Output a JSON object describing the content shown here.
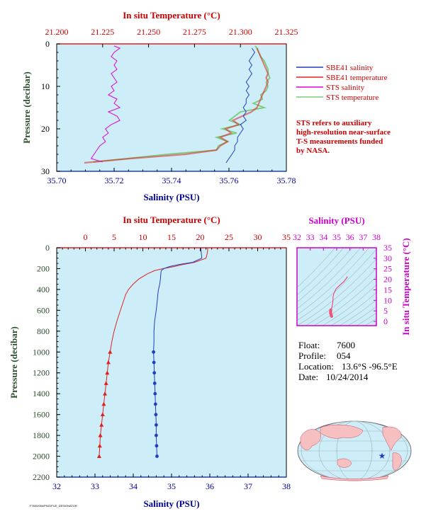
{
  "colors": {
    "salinity": "#1f3fc0",
    "temperature": "#e02020",
    "sts_salinity": "#dd00dd",
    "sts_temperature": "#7ccc7c",
    "temp_axis": "#cc0000",
    "sal_axis": "#00009a",
    "pressure_axis": "#2e4d2e",
    "ts_axis": "#cc00cc",
    "plot_bg": "#cdeef8",
    "map_land": "#f6c0c0",
    "map_ocean": "#cdeef8"
  },
  "legend": {
    "items": [
      {
        "label": "SBE41 salinity",
        "color": "#1f3fc0"
      },
      {
        "label": "SBE41 temperature",
        "color": "#e02020"
      },
      {
        "label": "STS salinity",
        "color": "#dd00dd"
      },
      {
        "label": "STS temperature",
        "color": "#7ccc7c"
      }
    ],
    "note": [
      "STS refers to auxiliary",
      "high-resolution near-surface",
      "T-S measurements funded",
      "by NASA."
    ]
  },
  "info": {
    "float_label": "Float:",
    "float": "7600",
    "profile_label": "Profile:",
    "profile": "054",
    "location_label": "Location:",
    "location": "13.6°S  -96.5°E",
    "date_label": "Date:",
    "date": "10/24/2014"
  },
  "footer": "F7600/054/PNG/FILE_DESIGNATOR",
  "chart_data": [
    {
      "type": "line",
      "name": "near-surface",
      "top_axis": {
        "label": "In situ Temperature (°C)",
        "range": [
          21.2,
          21.325
        ],
        "ticks": [
          "21.200",
          "21.225",
          "21.250",
          "21.275",
          "21.300",
          "21.325"
        ]
      },
      "bottom_axis": {
        "label": "Salinity (PSU)",
        "range": [
          35.7,
          35.78
        ],
        "ticks": [
          "35.70",
          "35.72",
          "35.74",
          "35.76",
          "35.78"
        ]
      },
      "left_axis": {
        "label": "Pressure (decibar)",
        "range": [
          0,
          30
        ],
        "inverted": true,
        "ticks": [
          "0",
          "10",
          "20",
          "30"
        ]
      },
      "series": [
        {
          "name": "STS salinity",
          "axis": "salinity",
          "p": [
            0.5,
            1,
            2,
            3,
            4,
            5,
            6,
            7,
            8,
            9,
            10,
            11,
            12,
            13,
            14,
            15,
            16,
            17,
            18,
            19,
            20,
            21,
            22,
            23,
            24,
            25,
            26,
            27,
            27.8
          ],
          "v": [
            35.72,
            35.722,
            35.72,
            35.719,
            35.721,
            35.72,
            35.721,
            35.719,
            35.72,
            35.721,
            35.719,
            35.72,
            35.718,
            35.721,
            35.72,
            35.722,
            35.718,
            35.721,
            35.722,
            35.719,
            35.717,
            35.718,
            35.716,
            35.717,
            35.715,
            35.714,
            35.713,
            35.712,
            35.716
          ]
        },
        {
          "name": "SBE41 salinity",
          "axis": "salinity",
          "p": [
            1,
            2,
            3,
            4,
            5,
            6,
            7,
            8,
            9,
            10,
            11,
            12,
            13,
            14,
            15,
            16,
            17,
            18,
            19,
            20,
            21,
            22,
            23,
            24,
            25,
            26,
            27,
            28
          ],
          "v": [
            35.768,
            35.769,
            35.768,
            35.767,
            35.768,
            35.767,
            35.768,
            35.767,
            35.766,
            35.767,
            35.766,
            35.767,
            35.766,
            35.766,
            35.765,
            35.766,
            35.765,
            35.766,
            35.764,
            35.765,
            35.764,
            35.763,
            35.763,
            35.762,
            35.762,
            35.761,
            35.76,
            35.759
          ]
        },
        {
          "name": "STS temperature",
          "axis": "temperature",
          "p": [
            0.5,
            1,
            2,
            3,
            4,
            5,
            6,
            7,
            8,
            9,
            10,
            11,
            12,
            13,
            14,
            15,
            16,
            17,
            18,
            19,
            20,
            21,
            22,
            23,
            24,
            25,
            26,
            27,
            27.8
          ],
          "v": [
            21.308,
            21.309,
            21.31,
            21.311,
            21.313,
            21.314,
            21.315,
            21.315,
            21.316,
            21.314,
            21.315,
            21.314,
            21.311,
            21.312,
            21.307,
            21.313,
            21.3,
            21.297,
            21.294,
            21.3,
            21.29,
            21.298,
            21.287,
            21.293,
            21.288,
            21.287,
            21.26,
            21.238,
            21.22
          ]
        },
        {
          "name": "SBE41 temperature",
          "axis": "temperature",
          "p": [
            1,
            2,
            3,
            4,
            5,
            6,
            7,
            8,
            9,
            10,
            11,
            12,
            13,
            14,
            15,
            16,
            17,
            18,
            19,
            20,
            21,
            22,
            23,
            24,
            25,
            26,
            27,
            28
          ],
          "v": [
            21.309,
            21.31,
            21.311,
            21.312,
            21.313,
            21.314,
            21.315,
            21.314,
            21.315,
            21.314,
            21.313,
            21.312,
            21.311,
            21.31,
            21.309,
            21.306,
            21.301,
            21.296,
            21.299,
            21.292,
            21.295,
            21.289,
            21.293,
            21.289,
            21.287,
            21.27,
            21.24,
            21.215
          ]
        }
      ]
    },
    {
      "type": "line",
      "name": "full-profile",
      "top_axis": {
        "label": "In situ Temperature (°C)",
        "range": [
          -5,
          35
        ],
        "ticks": [
          "0",
          "5",
          "10",
          "15",
          "20",
          "25",
          "30",
          "35"
        ]
      },
      "bottom_axis": {
        "label": "Salinity (PSU)",
        "range": [
          32,
          38
        ],
        "ticks": [
          "32",
          "33",
          "34",
          "35",
          "36",
          "37",
          "38"
        ]
      },
      "left_axis": {
        "label": "Pressure (decibar)",
        "range": [
          0,
          2200
        ],
        "inverted": true,
        "ticks": [
          "0",
          "200",
          "400",
          "600",
          "800",
          "1000",
          "1200",
          "1400",
          "1600",
          "1800",
          "2000",
          "2200"
        ]
      },
      "series": [
        {
          "name": "Temperature",
          "axis": "temperature",
          "p": [
            0,
            20,
            60,
            100,
            140,
            160,
            180,
            200,
            220,
            250,
            300,
            350,
            400,
            450,
            500,
            600,
            700,
            800,
            900,
            1000,
            1100,
            1200,
            1300,
            1400,
            1500,
            1600,
            1700,
            1800,
            1900,
            2000
          ],
          "v": [
            21.3,
            21.3,
            21.2,
            21.0,
            19.0,
            17.0,
            15.5,
            13.5,
            12.0,
            10.8,
            9.3,
            8.3,
            7.5,
            7.0,
            6.7,
            6.1,
            5.5,
            5.0,
            4.6,
            4.3,
            4.0,
            3.8,
            3.6,
            3.4,
            3.2,
            3.0,
            2.8,
            2.6,
            2.5,
            2.4
          ]
        },
        {
          "name": "Salinity",
          "axis": "salinity",
          "p": [
            0,
            20,
            60,
            100,
            140,
            160,
            180,
            200,
            220,
            250,
            300,
            350,
            400,
            450,
            500,
            600,
            700,
            800,
            900,
            1000,
            1100,
            1200,
            1300,
            1400,
            1500,
            1600,
            1700,
            1800,
            1900,
            2000
          ],
          "v": [
            35.77,
            35.77,
            35.78,
            35.79,
            35.55,
            35.2,
            34.95,
            34.8,
            34.73,
            34.72,
            34.71,
            34.69,
            34.66,
            34.64,
            34.63,
            34.6,
            34.56,
            34.54,
            34.54,
            34.53,
            34.54,
            34.55,
            34.56,
            34.57,
            34.58,
            34.59,
            34.6,
            34.6,
            34.61,
            34.62
          ]
        }
      ],
      "markers_from_pressure": 1000
    },
    {
      "type": "scatter",
      "name": "T-S diagram",
      "top_axis": {
        "label": "Salinity (PSU)",
        "range": [
          32,
          38
        ],
        "ticks": [
          "32",
          "33",
          "34",
          "35",
          "36",
          "37",
          "38"
        ]
      },
      "right_axis": {
        "label": "In situ Temperature (°C)",
        "range": [
          -2,
          35
        ],
        "ticks": [
          "0",
          "5",
          "10",
          "15",
          "20",
          "25",
          "30",
          "35"
        ]
      },
      "series": [
        {
          "name": "T-S",
          "s": [
            35.77,
            35.78,
            35.79,
            35.55,
            35.2,
            34.95,
            34.8,
            34.73,
            34.72,
            34.71,
            34.69,
            34.66,
            34.64,
            34.63,
            34.6,
            34.56,
            34.54,
            34.54,
            34.53,
            34.54,
            34.55,
            34.56,
            34.57,
            34.58,
            34.59,
            34.6,
            34.6,
            34.61,
            34.62
          ],
          "t": [
            21.3,
            21.2,
            21.0,
            19.0,
            17.0,
            15.5,
            13.5,
            12.0,
            10.8,
            9.3,
            8.3,
            7.5,
            7.0,
            6.7,
            6.1,
            5.5,
            5.0,
            4.6,
            4.3,
            4.0,
            3.8,
            3.6,
            3.4,
            3.2,
            3.0,
            2.8,
            2.6,
            2.5,
            2.4
          ]
        }
      ]
    }
  ]
}
